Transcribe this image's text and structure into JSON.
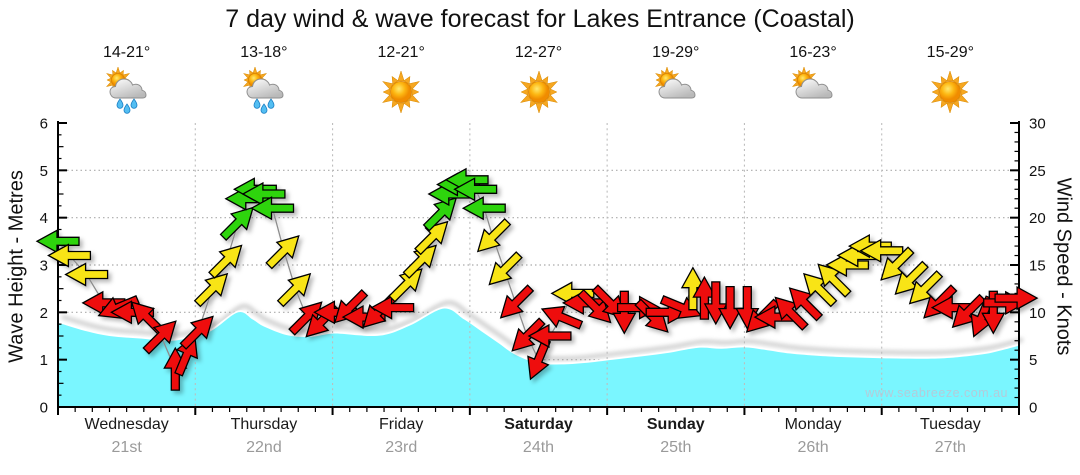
{
  "title": "7 day wind & wave forecast for Lakes Entrance (Coastal)",
  "watermark": "www.seabreeze.com.au",
  "axes": {
    "left_label": "Wave Height - Metres",
    "right_label": "Wind Speed - Knots",
    "left_ticks": [
      0,
      1,
      2,
      3,
      4,
      5,
      6
    ],
    "right_ticks": [
      0,
      5,
      10,
      15,
      20,
      25,
      30
    ],
    "left_range": [
      0,
      6
    ],
    "right_range": [
      0,
      30
    ]
  },
  "days": [
    {
      "name": "Wednesday",
      "date": "21st",
      "temp": "14-21°",
      "icon": "sun-showers",
      "bold": false
    },
    {
      "name": "Thursday",
      "date": "22nd",
      "temp": "13-18°",
      "icon": "sun-showers",
      "bold": false
    },
    {
      "name": "Friday",
      "date": "23rd",
      "temp": "12-21°",
      "icon": "sunny",
      "bold": false
    },
    {
      "name": "Saturday",
      "date": "24th",
      "temp": "12-27°",
      "icon": "sunny",
      "bold": true
    },
    {
      "name": "Sunday",
      "date": "25th",
      "temp": "19-29°",
      "icon": "partly-cloudy",
      "bold": true
    },
    {
      "name": "Monday",
      "date": "26th",
      "temp": "16-23°",
      "icon": "partly-cloudy",
      "bold": false
    },
    {
      "name": "Tuesday",
      "date": "27th",
      "temp": "15-29°",
      "icon": "sunny",
      "bold": false
    }
  ],
  "chart_data": {
    "type": "combo",
    "x_axis": {
      "unit": "hours",
      "range": [
        0,
        168
      ],
      "hours_per_day": 24
    },
    "series": [
      {
        "name": "Wave Height",
        "type": "area",
        "axis": "left",
        "unit": "m",
        "color": "#7AF6FF",
        "points": [
          [
            0,
            1.78
          ],
          [
            5,
            1.6
          ],
          [
            9,
            1.5
          ],
          [
            14,
            1.45
          ],
          [
            20,
            1.4
          ],
          [
            24,
            1.5
          ],
          [
            27,
            1.62
          ],
          [
            31.5,
            2.0
          ],
          [
            34,
            1.85
          ],
          [
            36,
            1.7
          ],
          [
            40,
            1.52
          ],
          [
            44,
            1.48
          ],
          [
            48,
            1.55
          ],
          [
            52,
            1.52
          ],
          [
            55,
            1.5
          ],
          [
            58,
            1.55
          ],
          [
            62,
            1.75
          ],
          [
            67.5,
            2.08
          ],
          [
            71,
            1.85
          ],
          [
            74,
            1.6
          ],
          [
            77,
            1.35
          ],
          [
            80,
            1.1
          ],
          [
            84,
            0.92
          ],
          [
            88,
            0.9
          ],
          [
            92,
            0.93
          ],
          [
            97,
            1.0
          ],
          [
            102,
            1.07
          ],
          [
            107,
            1.15
          ],
          [
            112,
            1.25
          ],
          [
            116,
            1.23
          ],
          [
            120,
            1.26
          ],
          [
            124,
            1.2
          ],
          [
            128,
            1.13
          ],
          [
            133,
            1.08
          ],
          [
            138,
            1.05
          ],
          [
            144,
            1.03
          ],
          [
            150,
            1.02
          ],
          [
            155,
            1.03
          ],
          [
            158,
            1.06
          ],
          [
            162,
            1.12
          ],
          [
            165,
            1.2
          ],
          [
            168,
            1.3
          ]
        ]
      },
      {
        "name": "Wind Speed",
        "type": "line-arrows",
        "axis": "right",
        "unit": "knots",
        "point_fields": [
          "t_hours",
          "knots",
          "arrow_pointing",
          "level_color"
        ],
        "points": [
          [
            0,
            17.5,
            "W",
            "green"
          ],
          [
            2,
            16,
            "W",
            "yellow"
          ],
          [
            5,
            14,
            "W",
            "yellow"
          ],
          [
            8,
            11,
            "W",
            "red"
          ],
          [
            10.5,
            10.5,
            "WSW",
            "red"
          ],
          [
            13,
            10,
            "W",
            "red"
          ],
          [
            15.5,
            9.5,
            "NW",
            "red"
          ],
          [
            18,
            7.5,
            "NE",
            "red"
          ],
          [
            20.5,
            4,
            "N",
            "red"
          ],
          [
            22.5,
            5.5,
            "NNE",
            "red"
          ],
          [
            24.5,
            8,
            "NE",
            "red"
          ],
          [
            27,
            12.5,
            "NE",
            "yellow"
          ],
          [
            29.5,
            15.5,
            "NE",
            "yellow"
          ],
          [
            31.5,
            19.5,
            "NE",
            "green"
          ],
          [
            33,
            22,
            "W",
            "green"
          ],
          [
            34.5,
            23,
            "W",
            "green"
          ],
          [
            36,
            22.5,
            "W",
            "green"
          ],
          [
            37.5,
            21,
            "W",
            "green"
          ],
          [
            39.5,
            16.5,
            "NE",
            "yellow"
          ],
          [
            41.5,
            12.5,
            "NE",
            "yellow"
          ],
          [
            43.5,
            9.5,
            "NE",
            "red"
          ],
          [
            46,
            9,
            "SW",
            "red"
          ],
          [
            48.5,
            10,
            "W",
            "red"
          ],
          [
            51,
            10.5,
            "SW",
            "red"
          ],
          [
            53.5,
            9.5,
            "W",
            "red"
          ],
          [
            56,
            10,
            "SW",
            "red"
          ],
          [
            58.5,
            10.5,
            "W",
            "red"
          ],
          [
            61,
            13,
            "NE",
            "yellow"
          ],
          [
            63.5,
            15.5,
            "NE",
            "yellow"
          ],
          [
            65.5,
            18,
            "NE",
            "yellow"
          ],
          [
            67,
            20.5,
            "NE",
            "green"
          ],
          [
            68.5,
            22.5,
            "W",
            "green"
          ],
          [
            70,
            23.5,
            "W",
            "green"
          ],
          [
            71.5,
            24,
            "W",
            "green"
          ],
          [
            73,
            23,
            "W",
            "green"
          ],
          [
            74.5,
            21,
            "W",
            "green"
          ],
          [
            76,
            18,
            "SW",
            "yellow"
          ],
          [
            78,
            14.5,
            "SW",
            "yellow"
          ],
          [
            80,
            11,
            "SW",
            "red"
          ],
          [
            82,
            7.5,
            "SW",
            "red"
          ],
          [
            84,
            5,
            "SSW",
            "red"
          ],
          [
            86,
            7.5,
            "W",
            "red"
          ],
          [
            88,
            9.5,
            "WNW",
            "red"
          ],
          [
            90,
            12,
            "W",
            "yellow"
          ],
          [
            92,
            11,
            "W",
            "red"
          ],
          [
            94,
            10.5,
            "SE",
            "red"
          ],
          [
            96.5,
            11,
            "SE",
            "red"
          ],
          [
            99,
            10,
            "S",
            "red"
          ],
          [
            101.5,
            10.5,
            "E",
            "red"
          ],
          [
            104,
            9.5,
            "SE",
            "red"
          ],
          [
            106.5,
            10,
            "E",
            "red"
          ],
          [
            109,
            10.5,
            "ESE",
            "red"
          ],
          [
            111,
            12.5,
            "N",
            "yellow"
          ],
          [
            113,
            11.5,
            "N",
            "red"
          ],
          [
            115,
            11,
            "S",
            "red"
          ],
          [
            117.5,
            10.5,
            "S",
            "red"
          ],
          [
            120.5,
            10.5,
            "S",
            "red"
          ],
          [
            123,
            9.5,
            "SW",
            "red"
          ],
          [
            125.5,
            9.5,
            "W",
            "red"
          ],
          [
            128,
            10,
            "NW",
            "red"
          ],
          [
            130.5,
            11,
            "NW",
            "red"
          ],
          [
            133,
            12.5,
            "NW",
            "yellow"
          ],
          [
            135.5,
            13.5,
            "NW",
            "yellow"
          ],
          [
            138,
            15,
            "W",
            "yellow"
          ],
          [
            140,
            16,
            "W",
            "yellow"
          ],
          [
            142,
            17,
            "W",
            "yellow"
          ],
          [
            144,
            16.5,
            "W",
            "yellow"
          ],
          [
            146.5,
            15,
            "SW",
            "yellow"
          ],
          [
            149,
            13.5,
            "SW",
            "yellow"
          ],
          [
            151.5,
            12.5,
            "SW",
            "yellow"
          ],
          [
            154,
            11,
            "SW",
            "red"
          ],
          [
            156.5,
            10.5,
            "W",
            "red"
          ],
          [
            159,
            10,
            "SW",
            "red"
          ],
          [
            161.5,
            9.5,
            "SSW",
            "red"
          ],
          [
            163.5,
            10,
            "S",
            "red"
          ],
          [
            165.5,
            11,
            "E",
            "red"
          ],
          [
            167.5,
            11.5,
            "E",
            "red"
          ]
        ]
      }
    ]
  },
  "colors": {
    "red": "#EE1111",
    "yellow": "#F8E414",
    "green": "#2FD40E",
    "wave_fill": "#7AF6FF",
    "grid": "#ABABAB",
    "day_grid": "#BDBDBD",
    "connector_line": "#8C8C8C",
    "axis": "#000000",
    "date_text": "#9A9A9A",
    "watermark_text": "#B4CBD9"
  }
}
